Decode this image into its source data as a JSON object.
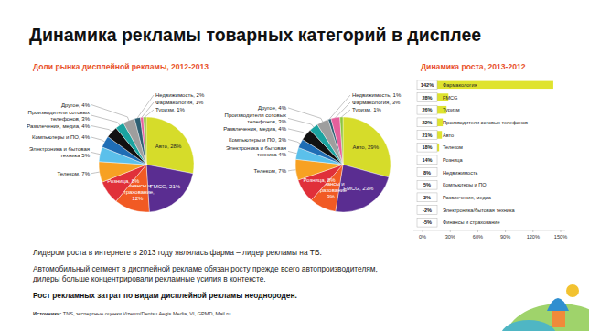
{
  "slide": {
    "title": "Динамика рекламы товарных категорий в дисплее",
    "pie_section_title": "Доли рынка дисплейной рекламы, 2012-2013",
    "notes": [
      "Лидером роста в интернете в 2013 году являлась фарма – лидер рекламы на ТВ.",
      "Автомобильный сегмент в дисплейной рекламе обязан росту прежде всего автопроизводителям,",
      "дилеры больше концентрировали рекламные усилия в контексте."
    ],
    "conclusion": "Рост рекламных затрат по видам дисплейной рекламы неоднороден.",
    "source_label": "Источники:",
    "source": "TNS, экспертные оценки Vizeum/Dentsu Aegis Media, VI, GPMD, Mail.ru"
  },
  "chart_data": [
    {
      "type": "pie",
      "categories": [
        "Авто,",
        "FMCG,",
        "Финансы и страхование,",
        "Розница,",
        "Телеком,",
        "Электроника и бытовая техника",
        "Компьютеры и ПО,",
        "Развлечения, медиа,",
        "Производители сотовых телефонов,",
        "Другое,",
        "Недвижимость,",
        "Фармакология,",
        "Туризм,"
      ],
      "values": [
        28,
        21,
        12,
        8,
        7,
        5,
        4,
        4,
        3,
        4,
        2,
        1,
        1
      ],
      "value_labels": [
        "28%",
        "21%",
        "12%",
        "8%",
        "7%",
        "5%",
        "4%",
        "4%",
        "3%",
        "4%",
        "2%",
        "1%",
        "1%"
      ],
      "colors": [
        "#d6dc2a",
        "#5a2d91",
        "#f15a24",
        "#e0303a",
        "#f7a123",
        "#5bc0eb",
        "#1f6db5",
        "#111111",
        "#1aa3a0",
        "#9e9e9e",
        "#2d5f73",
        "#e5609c",
        "#8cc63f"
      ],
      "data_labels": true
    },
    {
      "type": "pie",
      "categories": [
        "Авто,",
        "FMCG,",
        "Финансы и страхование",
        "Розница,",
        "Телеком,",
        "Электроника и бытовая техника",
        "Компьютеры и ПО,",
        "Развлечения, медиа,",
        "Производители сотовых телефонов,",
        "Другое,",
        "Недвижимость,",
        "Фармакология,",
        "Туризм,"
      ],
      "values": [
        29,
        23,
        9,
        8,
        7,
        4,
        3,
        4,
        3,
        4,
        1,
        3,
        1
      ],
      "value_labels": [
        "29%",
        "23%",
        "9%",
        "8%",
        "7%",
        "4%",
        "3%",
        "4%",
        "3%",
        "4%",
        "1%",
        "3%",
        "1%"
      ],
      "colors": [
        "#d6dc2a",
        "#5a2d91",
        "#f15a24",
        "#e0303a",
        "#f7a123",
        "#5bc0eb",
        "#1f6db5",
        "#111111",
        "#1aa3a0",
        "#9e9e9e",
        "#2d5f73",
        "#e5609c",
        "#8cc63f"
      ],
      "data_labels": true
    },
    {
      "type": "bar",
      "orientation": "horizontal",
      "title": "Динамика роста, 2013-2012",
      "categories": [
        "Фармакология",
        "FMCG",
        "Туризм",
        "Производители сотовых телефонов",
        "Авто",
        "Телеком",
        "Розница",
        "Недвижимость",
        "Компьютеры и ПО",
        "Развлечения, медиа",
        "Электроника/бытовая техника",
        "Финансы и страхование"
      ],
      "values": [
        142,
        28,
        26,
        22,
        21,
        18,
        14,
        8,
        5,
        3,
        -2,
        -5
      ],
      "value_labels": [
        "142%",
        "28%",
        "26%",
        "22%",
        "21%",
        "18%",
        "14%",
        "8%",
        "5%",
        "3%",
        "-2%",
        "-5%"
      ],
      "color": "#dfe32e",
      "xlim": [
        -10,
        155
      ],
      "xticks": [
        {
          "value": 0,
          "label": "0%"
        },
        {
          "value": 30,
          "label": "30%"
        },
        {
          "value": 60,
          "label": "60%"
        },
        {
          "value": 90,
          "label": "90%"
        },
        {
          "value": 120,
          "label": "120%"
        },
        {
          "value": 150,
          "label": "150%"
        }
      ],
      "grid": false,
      "data_labels": true,
      "tick_labels": "x"
    }
  ]
}
